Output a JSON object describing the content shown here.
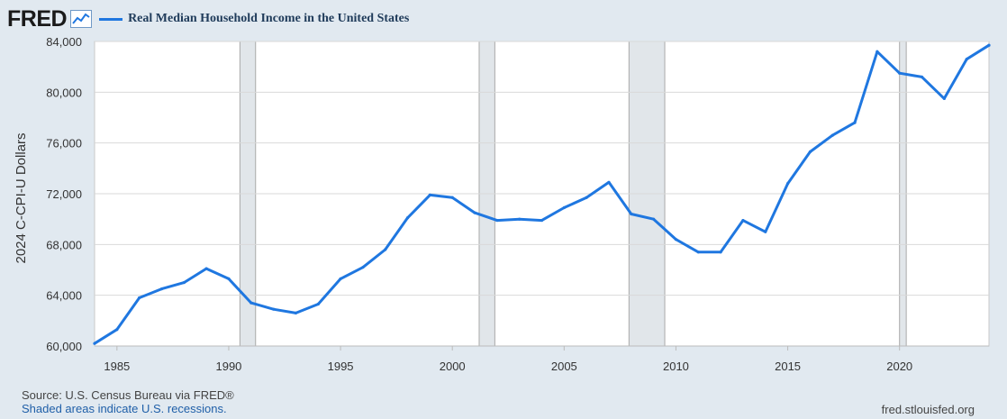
{
  "header": {
    "logo_text": "FRED",
    "logo_icon": "line-chart-icon",
    "legend_label": "Real Median Household Income in the United States"
  },
  "colors": {
    "series": "#1f77e0",
    "plot_bg": "#ffffff",
    "page_bg": "#e1e9f0",
    "recession": "#e1e6ea",
    "grid": "#d9d9d9"
  },
  "chart_data": {
    "type": "line",
    "title": "",
    "xlabel": "",
    "ylabel": "2024 C-CPI-U Dollars",
    "xlim": [
      1984,
      2024
    ],
    "ylim": [
      60000,
      84000
    ],
    "x_ticks": [
      1985,
      1990,
      1995,
      2000,
      2005,
      2010,
      2015,
      2020
    ],
    "x_tick_labels": [
      "1985",
      "1990",
      "1995",
      "2000",
      "2005",
      "2010",
      "2015",
      "2020"
    ],
    "y_ticks": [
      60000,
      64000,
      68000,
      72000,
      76000,
      80000,
      84000
    ],
    "y_tick_labels": [
      "60,000",
      "64,000",
      "68,000",
      "72,000",
      "76,000",
      "80,000",
      "84,000"
    ],
    "grid": "horizontal",
    "recessions": [
      [
        1990.5,
        1991.2
      ],
      [
        2001.2,
        2001.9
      ],
      [
        2007.9,
        2009.5
      ],
      [
        2020.0,
        2020.3
      ]
    ],
    "series": [
      {
        "name": "Real Median Household Income in the United States",
        "x": [
          1984,
          1985,
          1986,
          1987,
          1988,
          1989,
          1990,
          1991,
          1992,
          1993,
          1994,
          1995,
          1996,
          1997,
          1998,
          1999,
          2000,
          2001,
          2002,
          2003,
          2004,
          2005,
          2006,
          2007,
          2008,
          2009,
          2010,
          2011,
          2012,
          2013,
          2014,
          2015,
          2016,
          2017,
          2018,
          2019,
          2020,
          2021,
          2022,
          2023,
          2024
        ],
        "values": [
          60200,
          61300,
          63800,
          64500,
          65000,
          66100,
          65300,
          63400,
          62900,
          62600,
          63300,
          65300,
          66200,
          67600,
          70100,
          71900,
          71700,
          70500,
          69900,
          70000,
          69900,
          70900,
          71700,
          72900,
          70400,
          70000,
          68400,
          67400,
          67400,
          69900,
          69000,
          72800,
          75300,
          76600,
          77600,
          83200,
          81500,
          81200,
          79500,
          82600,
          83700
        ]
      }
    ]
  },
  "footer": {
    "source": "Source: U.S. Census Bureau via FRED®",
    "note": "Shaded areas indicate U.S. recessions.",
    "site": "fred.stlouisfed.org"
  }
}
